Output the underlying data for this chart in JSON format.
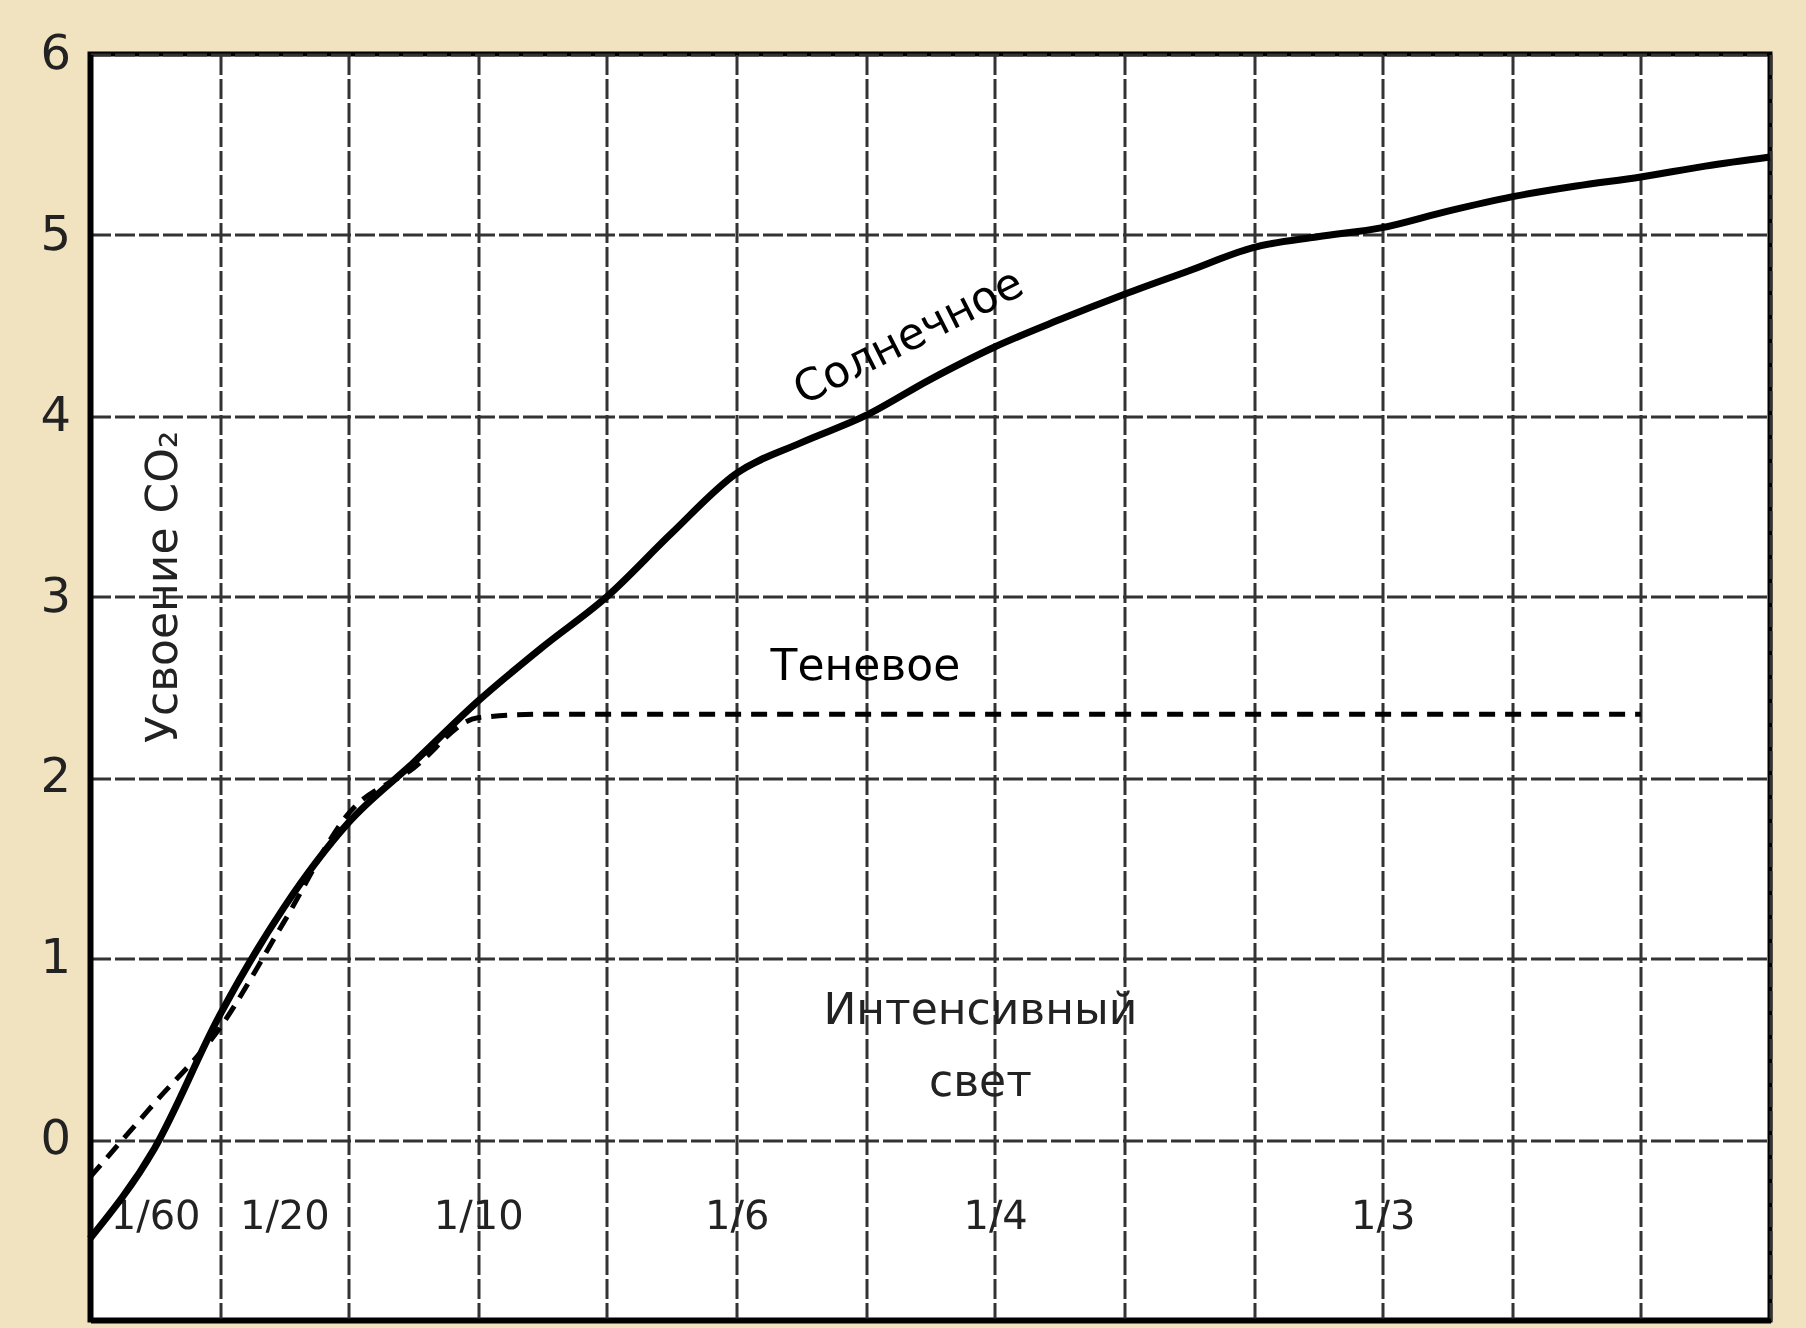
{
  "chart_data": {
    "type": "line",
    "ylabel": "Усвоение CO₂",
    "annotations": [
      "Интенсивный свет"
    ],
    "categories": [
      null,
      "1/60",
      null,
      "1/20",
      null,
      null,
      "1/10",
      null,
      null,
      null,
      "1/6",
      null,
      null,
      null,
      "1/4",
      null,
      null,
      null,
      null,
      null,
      "1/3",
      null,
      null,
      null,
      null,
      null,
      null
    ],
    "ylim": [
      -1,
      6
    ],
    "yticks": [
      0,
      1,
      2,
      3,
      4,
      5,
      6
    ],
    "grid": true,
    "legend": false,
    "marker": "none",
    "series": [
      {
        "name": "Солнечное",
        "color": "#000000",
        "line_style": "solid",
        "values": [
          -0.55,
          -0.05,
          0.68,
          1.28,
          1.75,
          2.08,
          2.42,
          2.72,
          3.0,
          3.35,
          3.68,
          3.85,
          4.0,
          4.2,
          4.38,
          4.53,
          4.67,
          4.8,
          4.93,
          4.99,
          5.04,
          5.13,
          5.21,
          5.27,
          5.32,
          5.38,
          5.43
        ]
      },
      {
        "name": "Теневое",
        "color": "#000000",
        "line_style": "dashed",
        "values": [
          -0.21,
          0.2,
          0.61,
          1.2,
          1.8,
          2.05,
          2.33,
          2.35,
          2.35,
          2.35,
          2.35,
          2.35,
          2.35,
          2.35,
          2.35,
          2.35,
          2.35,
          2.35,
          2.35,
          2.35,
          2.35,
          2.35,
          2.35,
          2.35,
          2.35,
          null,
          null
        ]
      }
    ]
  }
}
